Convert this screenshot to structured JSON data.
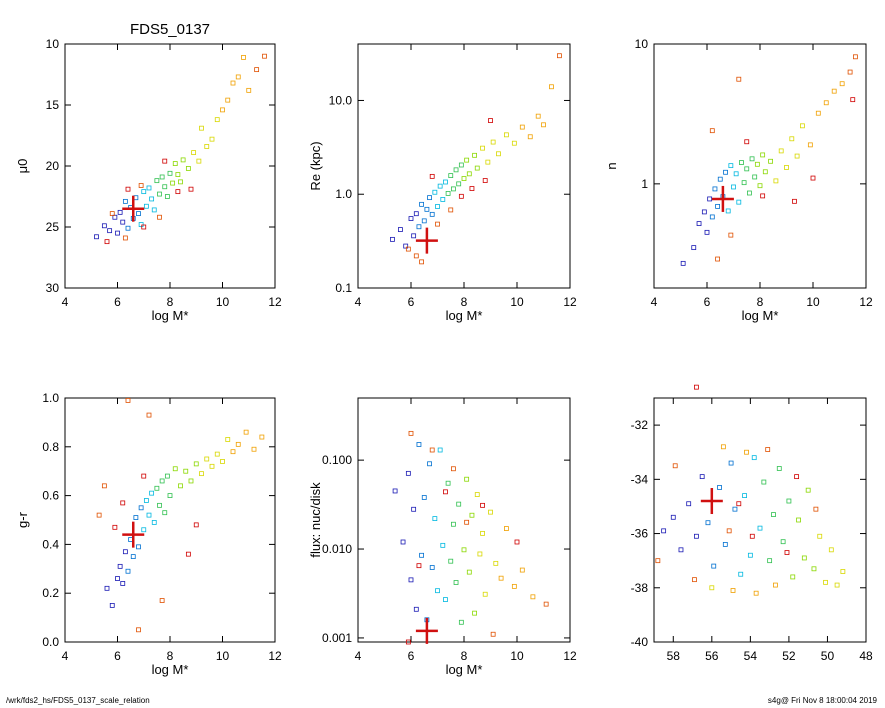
{
  "page": {
    "footer_left": "/wrk/fds2_hs/FDS5_0137_scale_relation",
    "footer_right": "s4g@  Fri Nov  8 18:00:04 2019"
  },
  "colors": {
    "marker_palette": [
      "#1a1ab4",
      "#0070d0",
      "#00b8e0",
      "#30c050",
      "#8ad800",
      "#d8d800",
      "#f0a000",
      "#e05000",
      "#d00000"
    ],
    "highlight": "#d01010"
  },
  "chart_data": [
    {
      "type": "scatter",
      "title": "FDS5_0137",
      "xlabel": "log M*",
      "ylabel": "μ0",
      "xlim": [
        4,
        12
      ],
      "ylim": [
        30,
        10
      ],
      "y_reversed": true,
      "xticks": [
        "4",
        "6",
        "8",
        "10",
        "12"
      ],
      "yticks": [
        "10",
        "15",
        "20",
        "25",
        "30"
      ],
      "highlight": {
        "x": 6.6,
        "y": 23.5
      },
      "points": [
        [
          5.2,
          25.8
        ],
        [
          5.5,
          24.9
        ],
        [
          5.7,
          25.3
        ],
        [
          5.9,
          24.2
        ],
        [
          6.0,
          25.5
        ],
        [
          6.1,
          23.8
        ],
        [
          6.2,
          24.6
        ],
        [
          6.3,
          22.9
        ],
        [
          6.4,
          25.1
        ],
        [
          6.5,
          23.4
        ],
        [
          6.6,
          24.3
        ],
        [
          6.7,
          22.6
        ],
        [
          6.8,
          23.9
        ],
        [
          6.9,
          24.8
        ],
        [
          7.0,
          22.1
        ],
        [
          7.1,
          23.3
        ],
        [
          7.2,
          21.8
        ],
        [
          7.3,
          22.7
        ],
        [
          7.4,
          23.6
        ],
        [
          7.5,
          21.2
        ],
        [
          7.6,
          22.3
        ],
        [
          7.7,
          20.9
        ],
        [
          7.8,
          21.7
        ],
        [
          7.9,
          22.5
        ],
        [
          8.0,
          20.6
        ],
        [
          8.1,
          21.4
        ],
        [
          8.2,
          19.8
        ],
        [
          8.3,
          20.7
        ],
        [
          8.4,
          21.3
        ],
        [
          8.5,
          19.5
        ],
        [
          8.7,
          20.2
        ],
        [
          8.9,
          18.9
        ],
        [
          9.1,
          19.6
        ],
        [
          9.2,
          16.9
        ],
        [
          9.4,
          18.4
        ],
        [
          9.6,
          17.8
        ],
        [
          9.8,
          16.2
        ],
        [
          10.0,
          15.4
        ],
        [
          10.2,
          14.6
        ],
        [
          10.4,
          13.2
        ],
        [
          10.6,
          12.7
        ],
        [
          10.8,
          11.1
        ],
        [
          11.0,
          13.8
        ],
        [
          11.3,
          12.1
        ],
        [
          11.6,
          11.0
        ],
        [
          6.3,
          25.9
        ],
        [
          5.8,
          23.9
        ],
        [
          6.9,
          21.6
        ],
        [
          7.6,
          24.2
        ],
        [
          8.3,
          22.1
        ],
        [
          5.6,
          26.2
        ],
        [
          7.0,
          25.0
        ],
        [
          6.4,
          21.9
        ],
        [
          7.8,
          19.6
        ],
        [
          8.8,
          21.9
        ]
      ]
    },
    {
      "type": "scatter",
      "xlabel": "log M*",
      "ylabel": "Re (kpc)",
      "xlim": [
        4,
        12
      ],
      "ylim": [
        0.1,
        40
      ],
      "log_y": true,
      "xticks": [
        "4",
        "6",
        "8",
        "10",
        "12"
      ],
      "yticks": [
        "0.1",
        "1.0",
        "10.0"
      ],
      "highlight": {
        "x": 6.6,
        "y": 0.32
      },
      "points": [
        [
          5.3,
          0.33
        ],
        [
          5.6,
          0.42
        ],
        [
          5.8,
          0.28
        ],
        [
          6.0,
          0.55
        ],
        [
          6.1,
          0.36
        ],
        [
          6.2,
          0.62
        ],
        [
          6.3,
          0.45
        ],
        [
          6.4,
          0.78
        ],
        [
          6.5,
          0.52
        ],
        [
          6.6,
          0.69
        ],
        [
          6.7,
          0.92
        ],
        [
          6.8,
          0.61
        ],
        [
          6.9,
          1.05
        ],
        [
          7.0,
          0.74
        ],
        [
          7.1,
          1.22
        ],
        [
          7.2,
          0.88
        ],
        [
          7.3,
          1.35
        ],
        [
          7.4,
          1.02
        ],
        [
          7.5,
          1.58
        ],
        [
          7.6,
          1.14
        ],
        [
          7.7,
          1.82
        ],
        [
          7.8,
          1.29
        ],
        [
          7.9,
          2.05
        ],
        [
          8.0,
          1.47
        ],
        [
          8.1,
          2.31
        ],
        [
          8.2,
          1.65
        ],
        [
          8.4,
          2.6
        ],
        [
          8.5,
          1.9
        ],
        [
          8.7,
          3.1
        ],
        [
          8.9,
          2.2
        ],
        [
          9.1,
          3.6
        ],
        [
          9.3,
          2.7
        ],
        [
          9.6,
          4.3
        ],
        [
          9.9,
          3.5
        ],
        [
          10.2,
          5.2
        ],
        [
          10.5,
          4.1
        ],
        [
          10.8,
          6.8
        ],
        [
          11.0,
          5.5
        ],
        [
          11.3,
          14.0
        ],
        [
          11.6,
          30.0
        ],
        [
          6.2,
          0.22
        ],
        [
          5.9,
          0.26
        ],
        [
          6.4,
          0.19
        ],
        [
          7.0,
          0.48
        ],
        [
          7.5,
          0.68
        ],
        [
          8.3,
          1.15
        ],
        [
          9.0,
          6.1
        ],
        [
          6.8,
          1.55
        ],
        [
          7.9,
          0.95
        ],
        [
          8.8,
          1.4
        ]
      ]
    },
    {
      "type": "scatter",
      "xlabel": "log M*",
      "ylabel": "n",
      "xlim": [
        4,
        12
      ],
      "ylim": [
        0.18,
        10
      ],
      "log_y": true,
      "xticks": [
        "4",
        "6",
        "8",
        "10",
        "12"
      ],
      "yticks": [
        "1",
        "10"
      ],
      "highlight": {
        "x": 6.6,
        "y": 0.78
      },
      "points": [
        [
          5.1,
          0.27
        ],
        [
          5.5,
          0.35
        ],
        [
          5.7,
          0.52
        ],
        [
          5.9,
          0.63
        ],
        [
          6.0,
          0.45
        ],
        [
          6.1,
          0.78
        ],
        [
          6.2,
          0.58
        ],
        [
          6.3,
          0.92
        ],
        [
          6.4,
          0.69
        ],
        [
          6.5,
          1.08
        ],
        [
          6.6,
          0.81
        ],
        [
          6.7,
          1.21
        ],
        [
          6.8,
          0.64
        ],
        [
          6.9,
          1.35
        ],
        [
          7.0,
          0.95
        ],
        [
          7.1,
          1.18
        ],
        [
          7.2,
          0.74
        ],
        [
          7.3,
          1.42
        ],
        [
          7.4,
          1.02
        ],
        [
          7.5,
          1.28
        ],
        [
          7.6,
          0.86
        ],
        [
          7.7,
          1.51
        ],
        [
          7.8,
          1.12
        ],
        [
          7.9,
          1.38
        ],
        [
          8.0,
          0.97
        ],
        [
          8.1,
          1.61
        ],
        [
          8.2,
          1.22
        ],
        [
          8.4,
          1.45
        ],
        [
          8.6,
          1.05
        ],
        [
          8.8,
          1.72
        ],
        [
          9.0,
          1.31
        ],
        [
          9.2,
          2.1
        ],
        [
          9.4,
          1.58
        ],
        [
          9.6,
          2.6
        ],
        [
          9.9,
          1.9
        ],
        [
          10.2,
          3.2
        ],
        [
          10.5,
          3.8
        ],
        [
          10.8,
          4.6
        ],
        [
          11.1,
          5.2
        ],
        [
          11.4,
          6.3
        ],
        [
          11.6,
          8.1
        ],
        [
          6.2,
          2.4
        ],
        [
          7.2,
          5.6
        ],
        [
          6.4,
          0.29
        ],
        [
          6.9,
          0.43
        ],
        [
          8.1,
          0.82
        ],
        [
          9.3,
          0.75
        ],
        [
          7.5,
          2.0
        ],
        [
          10.0,
          1.1
        ],
        [
          11.5,
          4.0
        ]
      ]
    },
    {
      "type": "scatter",
      "xlabel": "log M*",
      "ylabel": "g-r",
      "xlim": [
        4,
        12
      ],
      "ylim": [
        0.0,
        1.0
      ],
      "xticks": [
        "4",
        "6",
        "8",
        "10",
        "12"
      ],
      "yticks": [
        "0.0",
        "0.2",
        "0.4",
        "0.6",
        "0.8",
        "1.0"
      ],
      "highlight": {
        "x": 6.6,
        "y": 0.44
      },
      "points": [
        [
          5.6,
          0.22
        ],
        [
          5.8,
          0.15
        ],
        [
          6.0,
          0.26
        ],
        [
          6.1,
          0.31
        ],
        [
          6.2,
          0.24
        ],
        [
          6.3,
          0.37
        ],
        [
          6.4,
          0.29
        ],
        [
          6.5,
          0.42
        ],
        [
          6.6,
          0.35
        ],
        [
          6.7,
          0.51
        ],
        [
          6.8,
          0.39
        ],
        [
          6.9,
          0.55
        ],
        [
          7.0,
          0.46
        ],
        [
          7.1,
          0.58
        ],
        [
          7.2,
          0.52
        ],
        [
          7.3,
          0.61
        ],
        [
          7.4,
          0.49
        ],
        [
          7.5,
          0.63
        ],
        [
          7.6,
          0.56
        ],
        [
          7.7,
          0.66
        ],
        [
          7.8,
          0.53
        ],
        [
          7.9,
          0.68
        ],
        [
          8.0,
          0.6
        ],
        [
          8.2,
          0.71
        ],
        [
          8.4,
          0.64
        ],
        [
          8.6,
          0.7
        ],
        [
          8.8,
          0.66
        ],
        [
          9.0,
          0.73
        ],
        [
          9.2,
          0.69
        ],
        [
          9.4,
          0.75
        ],
        [
          9.6,
          0.72
        ],
        [
          9.8,
          0.77
        ],
        [
          10.0,
          0.74
        ],
        [
          10.2,
          0.83
        ],
        [
          10.4,
          0.78
        ],
        [
          10.6,
          0.81
        ],
        [
          10.9,
          0.86
        ],
        [
          11.2,
          0.79
        ],
        [
          11.5,
          0.84
        ],
        [
          5.3,
          0.52
        ],
        [
          5.5,
          0.64
        ],
        [
          6.4,
          0.99
        ],
        [
          7.2,
          0.93
        ],
        [
          6.8,
          0.05
        ],
        [
          7.7,
          0.17
        ],
        [
          9.0,
          0.48
        ],
        [
          8.7,
          0.36
        ],
        [
          6.2,
          0.57
        ],
        [
          7.0,
          0.68
        ],
        [
          5.9,
          0.47
        ]
      ]
    },
    {
      "type": "scatter",
      "xlabel": "log M*",
      "ylabel": "flux: nuc/disk",
      "xlim": [
        4,
        12
      ],
      "ylim": [
        0.0009,
        0.5
      ],
      "log_y": true,
      "xticks": [
        "4",
        "6",
        "8",
        "10",
        "12"
      ],
      "yticks": [
        "0.001",
        "0.010",
        "0.100"
      ],
      "highlight": {
        "x": 6.6,
        "y": 0.0012
      },
      "points": [
        [
          5.4,
          0.045
        ],
        [
          5.7,
          0.012
        ],
        [
          5.9,
          0.071
        ],
        [
          6.0,
          0.0045
        ],
        [
          6.1,
          0.028
        ],
        [
          6.2,
          0.0021
        ],
        [
          6.3,
          0.15
        ],
        [
          6.4,
          0.0085
        ],
        [
          6.5,
          0.038
        ],
        [
          6.6,
          0.0016
        ],
        [
          6.7,
          0.091
        ],
        [
          6.8,
          0.0062
        ],
        [
          6.9,
          0.022
        ],
        [
          7.0,
          0.0034
        ],
        [
          7.1,
          0.13
        ],
        [
          7.2,
          0.011
        ],
        [
          7.3,
          0.0027
        ],
        [
          7.4,
          0.055
        ],
        [
          7.5,
          0.0073
        ],
        [
          7.6,
          0.019
        ],
        [
          7.7,
          0.0042
        ],
        [
          7.8,
          0.032
        ],
        [
          7.9,
          0.0015
        ],
        [
          8.0,
          0.0098
        ],
        [
          8.1,
          0.061
        ],
        [
          8.2,
          0.0055
        ],
        [
          8.3,
          0.024
        ],
        [
          8.4,
          0.0019
        ],
        [
          8.5,
          0.041
        ],
        [
          8.6,
          0.0088
        ],
        [
          8.7,
          0.015
        ],
        [
          8.8,
          0.0031
        ],
        [
          9.0,
          0.026
        ],
        [
          9.2,
          0.0069
        ],
        [
          9.4,
          0.0047
        ],
        [
          9.6,
          0.017
        ],
        [
          9.9,
          0.0038
        ],
        [
          10.2,
          0.0058
        ],
        [
          10.6,
          0.0029
        ],
        [
          11.1,
          0.0024
        ],
        [
          6.0,
          0.2
        ],
        [
          6.8,
          0.13
        ],
        [
          7.6,
          0.08
        ],
        [
          8.1,
          0.02
        ],
        [
          9.1,
          0.0011
        ],
        [
          8.7,
          0.031
        ],
        [
          6.3,
          0.0065
        ],
        [
          7.3,
          0.044
        ],
        [
          10.0,
          0.012
        ],
        [
          5.9,
          0.0009
        ]
      ]
    },
    {
      "type": "scatter",
      "xlabel": "",
      "ylabel": "",
      "xlim": [
        59,
        48
      ],
      "ylim": [
        -40,
        -31
      ],
      "x_reversed": true,
      "xticks": [
        "58",
        "56",
        "54",
        "52",
        "50",
        "48"
      ],
      "yticks": [
        "-32",
        "-34",
        "-36",
        "-38",
        "-40"
      ],
      "highlight": {
        "x": 56.0,
        "y": -34.8
      },
      "points": [
        [
          58.5,
          -35.9
        ],
        [
          58.0,
          -35.4
        ],
        [
          57.6,
          -36.6
        ],
        [
          57.2,
          -34.9
        ],
        [
          56.8,
          -36.1
        ],
        [
          56.5,
          -33.9
        ],
        [
          56.2,
          -35.6
        ],
        [
          55.9,
          -37.2
        ],
        [
          55.6,
          -34.3
        ],
        [
          55.3,
          -36.4
        ],
        [
          55.0,
          -33.4
        ],
        [
          54.8,
          -35.1
        ],
        [
          54.5,
          -37.5
        ],
        [
          54.3,
          -34.6
        ],
        [
          54.0,
          -36.8
        ],
        [
          53.8,
          -33.2
        ],
        [
          53.5,
          -35.8
        ],
        [
          53.3,
          -34.1
        ],
        [
          53.0,
          -37.0
        ],
        [
          52.8,
          -35.3
        ],
        [
          52.5,
          -33.6
        ],
        [
          52.3,
          -36.3
        ],
        [
          52.0,
          -34.8
        ],
        [
          51.8,
          -37.6
        ],
        [
          51.5,
          -35.5
        ],
        [
          51.2,
          -36.9
        ],
        [
          51.0,
          -34.4
        ],
        [
          50.7,
          -37.3
        ],
        [
          50.4,
          -36.1
        ],
        [
          50.1,
          -37.8
        ],
        [
          49.8,
          -36.6
        ],
        [
          49.5,
          -37.9
        ],
        [
          49.2,
          -37.4
        ],
        [
          56.0,
          -38.0
        ],
        [
          54.9,
          -38.1
        ],
        [
          53.7,
          -38.2
        ],
        [
          52.7,
          -37.9
        ],
        [
          55.4,
          -32.8
        ],
        [
          54.2,
          -33.0
        ],
        [
          53.1,
          -32.9
        ],
        [
          57.9,
          -33.5
        ],
        [
          50.6,
          -35.1
        ],
        [
          58.8,
          -37.0
        ],
        [
          56.9,
          -37.7
        ],
        [
          55.1,
          -35.9
        ],
        [
          54.6,
          -34.9
        ],
        [
          53.9,
          -36.1
        ],
        [
          52.1,
          -36.7
        ],
        [
          51.6,
          -33.9
        ],
        [
          56.8,
          -30.6
        ]
      ]
    }
  ]
}
